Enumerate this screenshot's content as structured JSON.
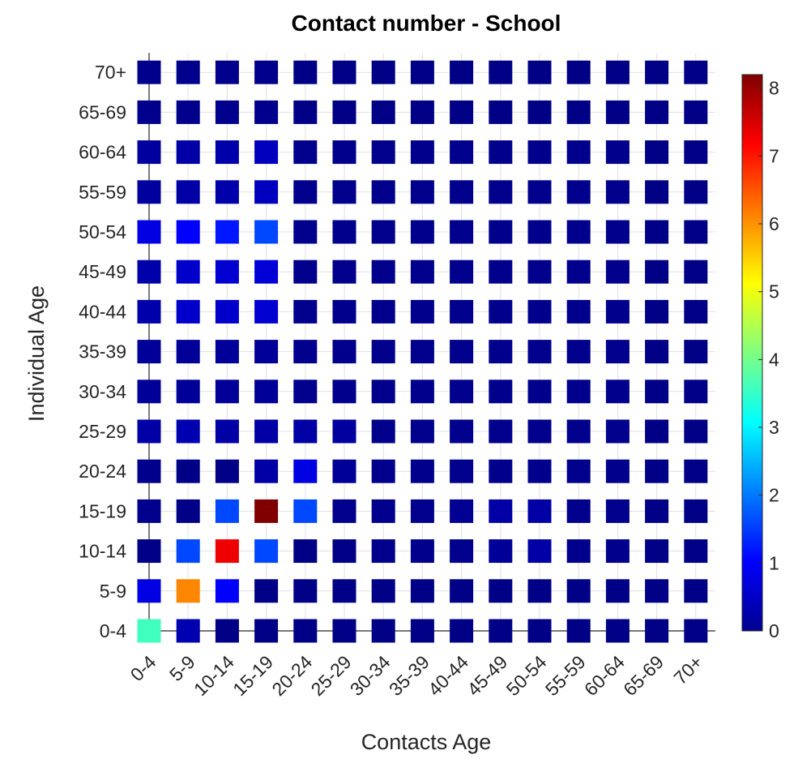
{
  "chart_data": {
    "type": "heatmap",
    "title": "Contact number - School",
    "xlabel": "Contacts Age",
    "ylabel": "Individual Age",
    "x_categories": [
      "0-4",
      "5-9",
      "10-14",
      "15-19",
      "20-24",
      "25-29",
      "30-34",
      "35-39",
      "40-44",
      "45-49",
      "50-54",
      "55-59",
      "60-64",
      "65-69",
      "70+"
    ],
    "y_categories": [
      "0-4",
      "5-9",
      "10-14",
      "15-19",
      "20-24",
      "25-29",
      "30-34",
      "35-39",
      "40-44",
      "45-49",
      "50-54",
      "55-59",
      "60-64",
      "65-69",
      "70+"
    ],
    "colormap": "jet",
    "color_range": [
      0,
      8.2
    ],
    "colorbar_ticks": [
      0,
      1,
      2,
      3,
      4,
      5,
      6,
      7,
      8
    ],
    "grid": true,
    "values": [
      [
        3.6,
        0.4,
        0.05,
        0.05,
        0.05,
        0.05,
        0.05,
        0.05,
        0.05,
        0.05,
        0.05,
        0.05,
        0.05,
        0.05,
        0.05
      ],
      [
        0.8,
        6.1,
        1.0,
        0.05,
        0.05,
        0.05,
        0.05,
        0.05,
        0.05,
        0.05,
        0.05,
        0.05,
        0.05,
        0.05,
        0.05
      ],
      [
        0.05,
        1.6,
        7.3,
        1.6,
        0.05,
        0.05,
        0.1,
        0.1,
        0.1,
        0.2,
        0.3,
        0.1,
        0.1,
        0.05,
        0.05
      ],
      [
        0.1,
        0.05,
        1.6,
        8.2,
        1.6,
        0.1,
        0.1,
        0.1,
        0.15,
        0.3,
        0.3,
        0.1,
        0.1,
        0.05,
        0.05
      ],
      [
        0.1,
        0.05,
        0.05,
        0.3,
        0.8,
        0.2,
        0.1,
        0.1,
        0.1,
        0.1,
        0.1,
        0.1,
        0.1,
        0.05,
        0.05
      ],
      [
        0.3,
        0.4,
        0.3,
        0.3,
        0.3,
        0.25,
        0.1,
        0.1,
        0.1,
        0.1,
        0.1,
        0.1,
        0.1,
        0.05,
        0.05
      ],
      [
        0.2,
        0.2,
        0.2,
        0.2,
        0.1,
        0.1,
        0.1,
        0.1,
        0.1,
        0.1,
        0.1,
        0.1,
        0.1,
        0.05,
        0.05
      ],
      [
        0.2,
        0.2,
        0.2,
        0.2,
        0.1,
        0.1,
        0.1,
        0.1,
        0.1,
        0.1,
        0.1,
        0.1,
        0.1,
        0.05,
        0.05
      ],
      [
        0.35,
        0.6,
        0.6,
        0.65,
        0.1,
        0.1,
        0.1,
        0.1,
        0.1,
        0.1,
        0.1,
        0.1,
        0.1,
        0.05,
        0.05
      ],
      [
        0.35,
        0.6,
        0.65,
        0.7,
        0.1,
        0.1,
        0.1,
        0.1,
        0.1,
        0.1,
        0.1,
        0.1,
        0.1,
        0.05,
        0.05
      ],
      [
        0.8,
        1.0,
        1.2,
        1.6,
        0.1,
        0.1,
        0.1,
        0.1,
        0.1,
        0.1,
        0.1,
        0.1,
        0.1,
        0.05,
        0.05
      ],
      [
        0.25,
        0.3,
        0.35,
        0.5,
        0.1,
        0.1,
        0.1,
        0.1,
        0.1,
        0.1,
        0.1,
        0.1,
        0.1,
        0.05,
        0.05
      ],
      [
        0.25,
        0.3,
        0.35,
        0.5,
        0.1,
        0.1,
        0.1,
        0.1,
        0.1,
        0.1,
        0.1,
        0.1,
        0.1,
        0.05,
        0.05
      ],
      [
        0.1,
        0.1,
        0.1,
        0.1,
        0.05,
        0.05,
        0.05,
        0.05,
        0.05,
        0.05,
        0.05,
        0.05,
        0.05,
        0.05,
        0.05
      ],
      [
        0.1,
        0.1,
        0.1,
        0.1,
        0.05,
        0.05,
        0.05,
        0.05,
        0.05,
        0.05,
        0.05,
        0.05,
        0.05,
        0.05,
        0.05
      ]
    ]
  }
}
